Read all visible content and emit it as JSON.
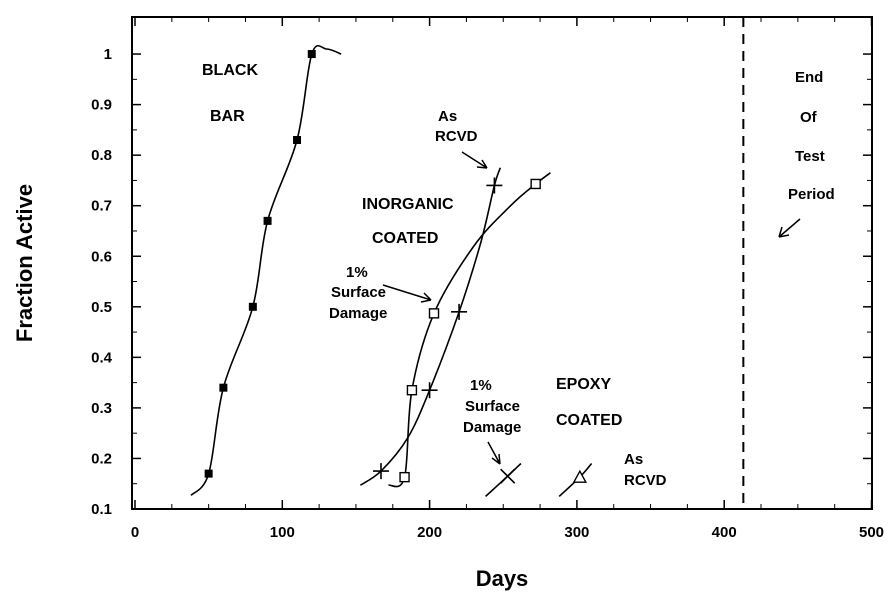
{
  "chart_data": {
    "type": "line",
    "xlabel": "Days",
    "ylabel": "Fraction Active",
    "xlim": [
      0,
      500
    ],
    "ylim": [
      0.1,
      1.0
    ],
    "xticks": [
      "0",
      "100",
      "200",
      "300",
      "400",
      "500"
    ],
    "yticks": [
      "0.1",
      "0.2",
      "0.3",
      "0.4",
      "0.5",
      "0.6",
      "0.7",
      "0.8",
      "0.9",
      "1"
    ],
    "grid": false,
    "end_of_test_day": 413,
    "series": [
      {
        "marker": "filled-square",
        "points": [
          [
            50,
            0.17
          ],
          [
            60,
            0.34
          ],
          [
            80,
            0.5
          ],
          [
            90,
            0.67
          ],
          [
            110,
            0.83
          ],
          [
            120,
            1.0
          ]
        ],
        "curve": [
          [
            38,
            0.127
          ],
          [
            50,
            0.17
          ],
          [
            60,
            0.34
          ],
          [
            80,
            0.5
          ],
          [
            90,
            0.67
          ],
          [
            110,
            0.83
          ],
          [
            120,
            1.0
          ],
          [
            130,
            1.01
          ],
          [
            140,
            1.0
          ]
        ]
      },
      {
        "marker": "plus",
        "points": [
          [
            167,
            0.175
          ],
          [
            200,
            0.335
          ],
          [
            220,
            0.49
          ],
          [
            244,
            0.74
          ]
        ],
        "curve": [
          [
            153,
            0.147
          ],
          [
            167,
            0.175
          ],
          [
            185,
            0.24
          ],
          [
            200,
            0.335
          ],
          [
            220,
            0.49
          ],
          [
            235,
            0.63
          ],
          [
            244,
            0.74
          ],
          [
            248,
            0.775
          ]
        ]
      },
      {
        "marker": "open-square",
        "points": [
          [
            183,
            0.163
          ],
          [
            188,
            0.335
          ],
          [
            203,
            0.487
          ],
          [
            272,
            0.743
          ]
        ],
        "curve": [
          [
            172,
            0.147
          ],
          [
            183,
            0.163
          ],
          [
            188,
            0.335
          ],
          [
            203,
            0.487
          ],
          [
            230,
            0.62
          ],
          [
            255,
            0.7
          ],
          [
            272,
            0.743
          ],
          [
            282,
            0.765
          ]
        ]
      },
      {
        "marker": "x",
        "points": [
          [
            253,
            0.165
          ]
        ],
        "curve": [
          [
            238,
            0.125
          ],
          [
            253,
            0.165
          ],
          [
            262,
            0.19
          ]
        ]
      },
      {
        "marker": "triangle",
        "points": [
          [
            302,
            0.163
          ]
        ],
        "curve": [
          [
            288,
            0.125
          ],
          [
            302,
            0.163
          ],
          [
            310,
            0.19
          ]
        ]
      }
    ],
    "annotations": [
      {
        "lines": [
          "BLACK",
          "BAR"
        ]
      },
      {
        "lines": [
          "As",
          "RCVD"
        ]
      },
      {
        "lines": [
          "INORGANIC",
          "COATED"
        ]
      },
      {
        "lines": [
          "1%",
          "Surface",
          "Damage"
        ]
      },
      {
        "lines": [
          "1%",
          "Surface",
          "Damage"
        ]
      },
      {
        "lines": [
          "EPOXY",
          "COATED"
        ]
      },
      {
        "lines": [
          "As",
          "RCVD"
        ]
      },
      {
        "lines": [
          "End",
          "Of",
          "Test",
          "Period"
        ]
      }
    ]
  }
}
